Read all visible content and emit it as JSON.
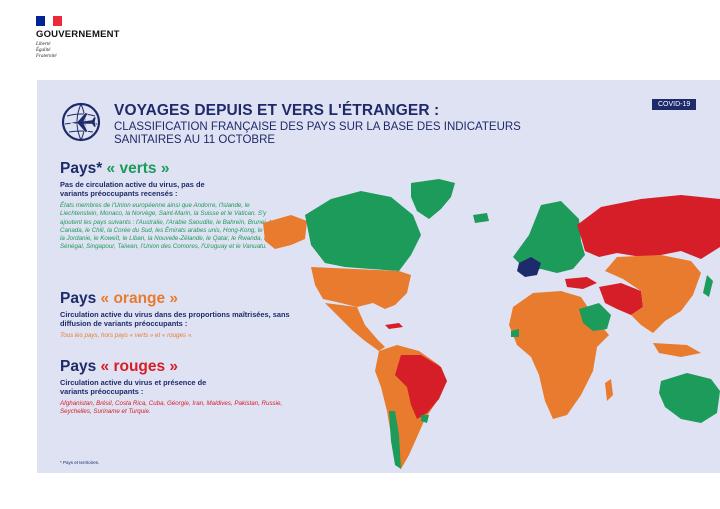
{
  "header": {
    "gov_name": "GOUVERNEMENT",
    "motto": [
      "Liberté",
      "Égalité",
      "Fraternité"
    ]
  },
  "title": "VOYAGES DEPUIS ET VERS L'ÉTRANGER :",
  "subtitle": "CLASSIFICATION FRANÇAISE DES PAYS SUR LA BASE DES INDICATEURS SANITAIRES AU 11 OCTOBRE",
  "badge": "COVID-19",
  "sections": {
    "green": {
      "prefix": "Pays* ",
      "label": "« verts »",
      "desc": "Pas de circulation active du virus, pas de variants préoccupants recensés :",
      "list": "États membres de l'Union européenne ainsi que Andorre, l'Islande, le Liechtenstein, Monaco, la Norvège, Saint-Marin, la Suisse et le Vatican. S'y ajoutent les pays suivants : l'Australie, l'Arabie Saoudite, le Bahreïn, Brunei, le Canada, le Chili, la Corée du Sud, les Émirats arabes unis, Hong-Kong, le Japon, la Jordanie, le Koweït, le Liban, la Nouvelle-Zélande, le Qatar, le Rwanda, le Sénégal, Singapour, Taïwan, l'Union des Comores, l'Uruguay et le Vanuatu."
    },
    "orange": {
      "prefix": "Pays ",
      "label": "« orange »",
      "desc": "Circulation active du virus dans des proportions maîtrisées, sans diffusion de variants préoccupants :",
      "list": "Tous les pays, hors pays « verts » et « rouges »."
    },
    "red": {
      "prefix": "Pays ",
      "label": "« rouges »",
      "desc": "Circulation active du virus et présence de variants préoccupants :",
      "list": "Afghanistan, Brésil, Costa Rica, Cuba, Géorgie, Iran, Maldives, Pakistan, Russie, Seychelles, Suriname et Turquie."
    }
  },
  "footnote": "* Pays et territoires.",
  "colors": {
    "green": "#1c9b5b",
    "orange": "#e87b2d",
    "red": "#d61e29",
    "france": "#1e2b6a",
    "navy": "#1e2b6a",
    "card_bg": "#dfe2f2"
  },
  "icons": [
    "plane-globe-icon"
  ]
}
